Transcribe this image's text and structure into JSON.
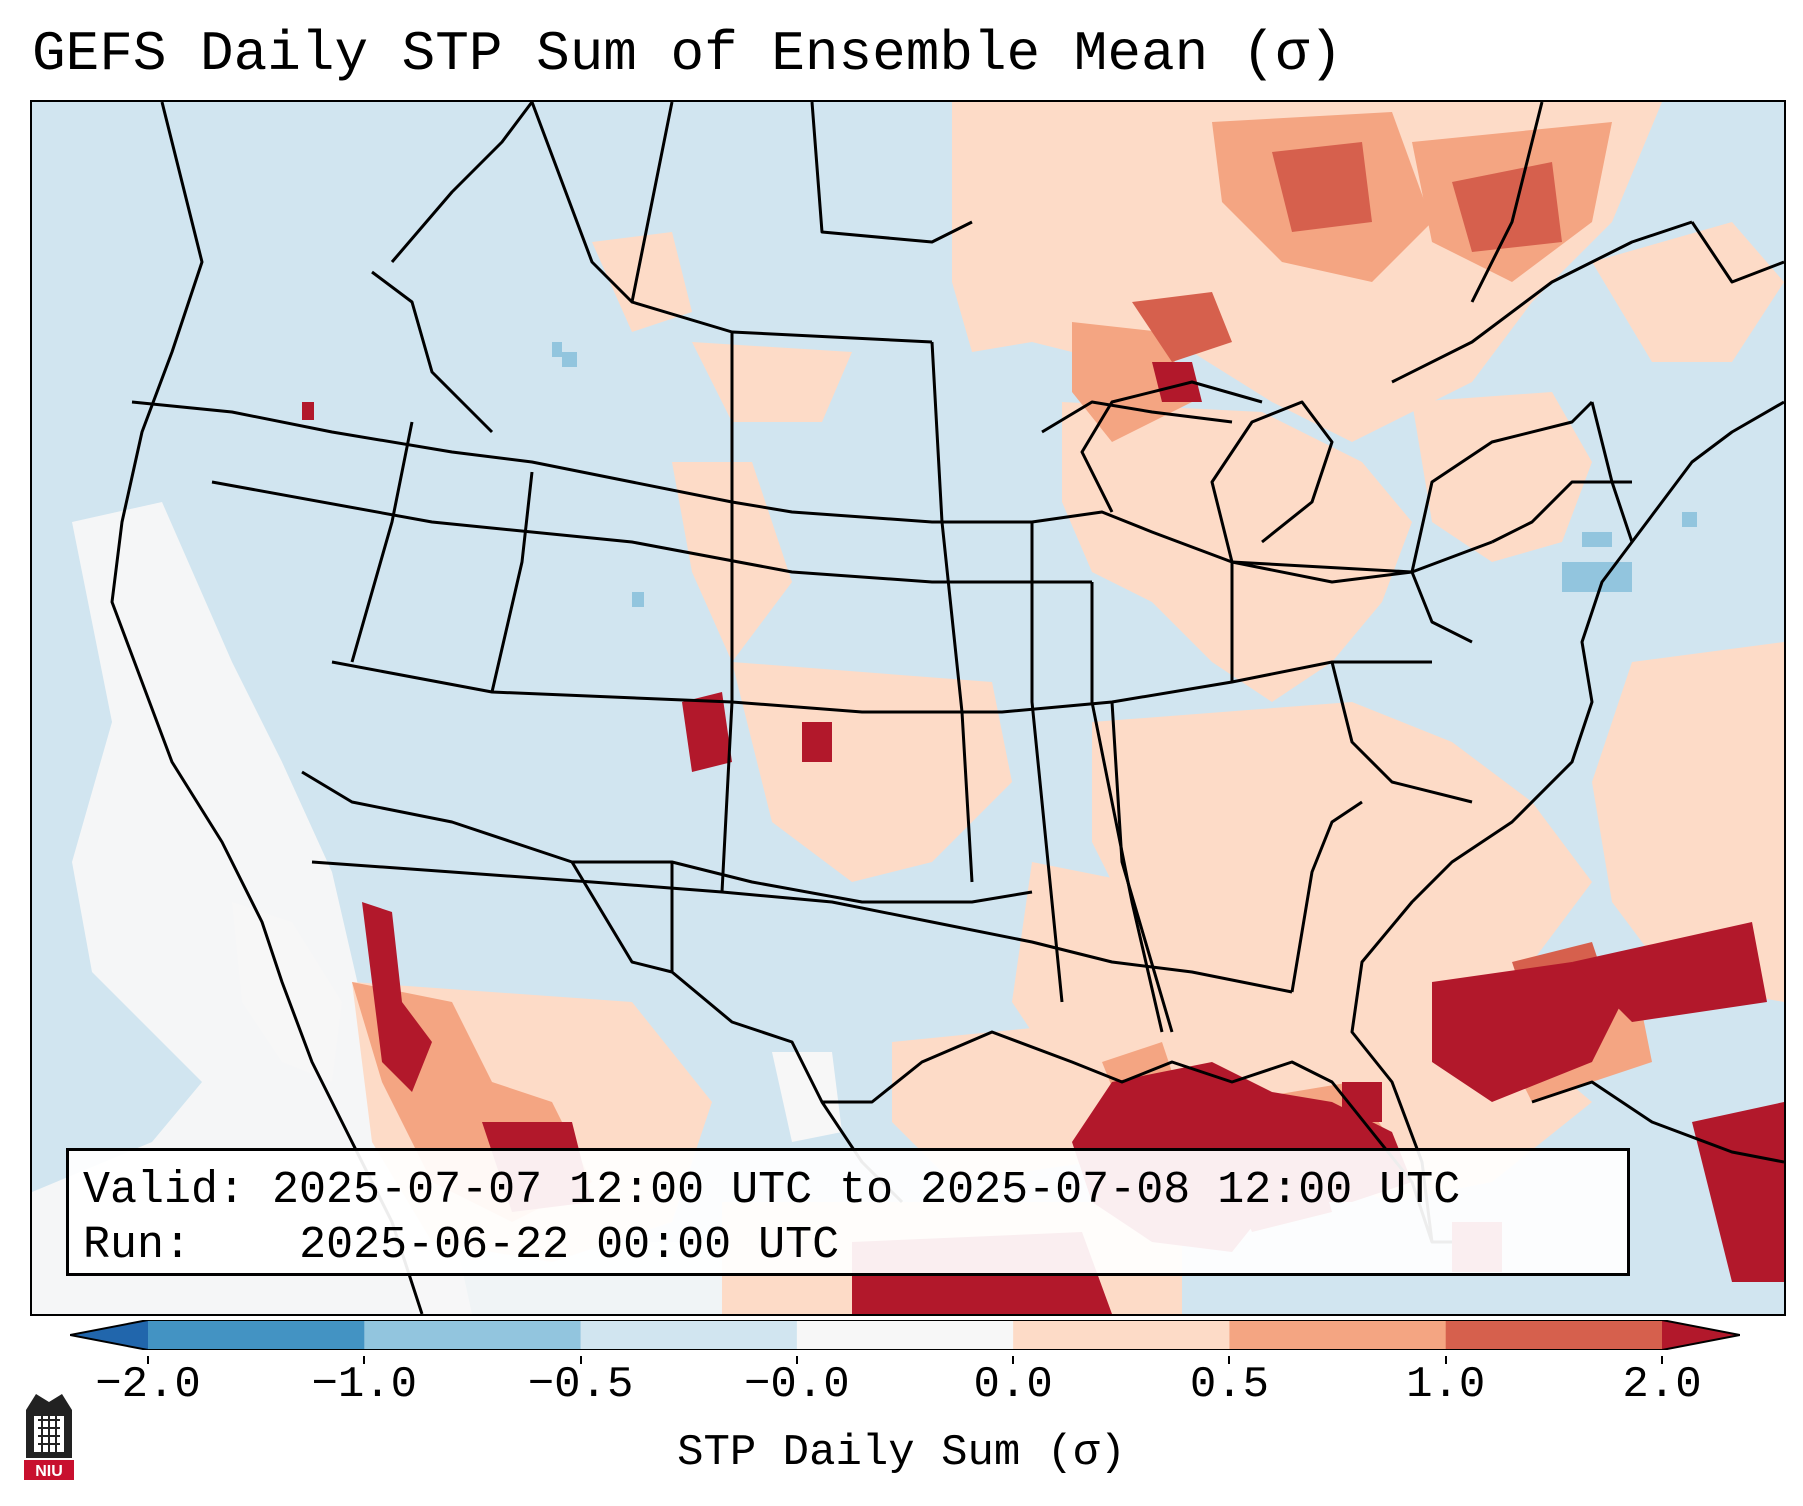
{
  "title": "GEFS Daily STP Sum of Ensemble Mean (σ)",
  "info": {
    "valid_label": "Valid:",
    "valid_value": "2025-07-07 12:00 UTC to 2025-07-08 12:00 UTC",
    "run_label": "Run:",
    "run_value": "2025-06-22 00:00 UTC"
  },
  "colorbar": {
    "label": "STP Daily Sum (σ)",
    "ticks": [
      "−2.0",
      "−1.0",
      "−0.5",
      "−0.0",
      "0.0",
      "0.5",
      "1.0",
      "2.0"
    ],
    "bin_colors": [
      "#4393c3",
      "#92c5de",
      "#d1e5f0",
      "#f7f7f7",
      "#fddbc7",
      "#f4a582",
      "#d6604d"
    ],
    "under_color": "#2166ac",
    "over_color": "#b2182b"
  },
  "map": {
    "background_color": "#d1e5f0",
    "state_line_color": "#000000"
  },
  "logo": {
    "text": "NIU"
  }
}
